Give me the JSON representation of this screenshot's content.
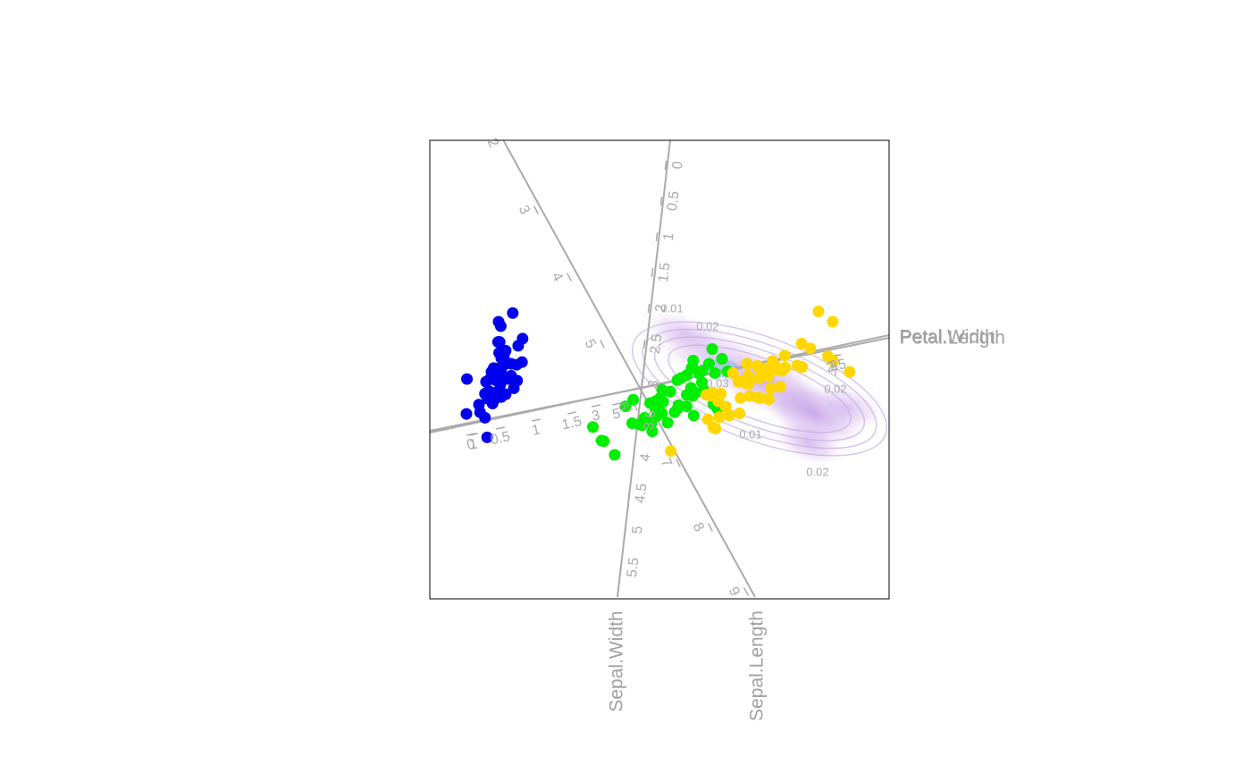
{
  "chart_data": {
    "type": "scatter",
    "description_kind": "biplot",
    "colors": {
      "axes": "#aaaaaa",
      "frame": "#000000",
      "setosa": "#0000ee",
      "versicolor": "#00ee00",
      "virginica": "#ffd700",
      "density_low": "#ead6f0",
      "density_high": "#b07ee0",
      "density_peak": "#4fa8d0"
    },
    "axes": [
      {
        "name": "Sepal.Width",
        "title": "Sepal.Width",
        "ticks": [
          "0",
          "0.5",
          "1",
          "1.5",
          "2",
          "2.5",
          "3",
          "3.5",
          "4",
          "4.5",
          "5",
          "5.5"
        ]
      },
      {
        "name": "Sepal.Length",
        "title": "Sepal.Length",
        "ticks": [
          "2",
          "3",
          "4",
          "5",
          "6",
          "7",
          "8",
          "9"
        ]
      },
      {
        "name": "Petal.Width",
        "title": "Petal.Width",
        "ticks": [
          "0",
          "0.5",
          "1",
          "1.5",
          "2",
          "2.5"
        ]
      },
      {
        "name": "Petal.Length",
        "title": "Petal.Length",
        "ticks": [
          "1",
          "3",
          "5",
          "7"
        ]
      }
    ],
    "contour_labels": [
      "0.01",
      "0.02",
      "0.03",
      "0.02",
      "0.01",
      "0.02"
    ],
    "series": [
      {
        "name": "",
        "group": "setosa",
        "points": [
          [
            -2.68,
            0.32
          ],
          [
            -2.71,
            -0.18
          ],
          [
            -2.89,
            -0.14
          ],
          [
            -2.75,
            -0.32
          ],
          [
            -2.73,
            0.33
          ],
          [
            -2.28,
            0.74
          ],
          [
            -2.82,
            -0.09
          ],
          [
            -2.63,
            0.16
          ],
          [
            -2.89,
            -0.58
          ],
          [
            -2.67,
            -0.11
          ],
          [
            -2.51,
            0.65
          ],
          [
            -2.61,
            0.02
          ],
          [
            -2.79,
            -0.24
          ],
          [
            -3.23,
            -0.51
          ],
          [
            -2.64,
            1.18
          ],
          [
            -2.38,
            1.34
          ],
          [
            -2.62,
            0.81
          ],
          [
            -2.65,
            0.31
          ],
          [
            -2.2,
            0.87
          ],
          [
            -2.59,
            0.51
          ],
          [
            -2.31,
            0.39
          ],
          [
            -2.54,
            0.43
          ],
          [
            -3.22,
            0.13
          ],
          [
            -2.3,
            0.1
          ],
          [
            -2.36,
            -0.04
          ],
          [
            -2.51,
            -0.15
          ],
          [
            -2.47,
            0.13
          ],
          [
            -2.56,
            0.37
          ],
          [
            -2.64,
            0.31
          ],
          [
            -2.63,
            -0.19
          ],
          [
            -2.59,
            -0.2
          ],
          [
            -2.41,
            0.41
          ],
          [
            -2.65,
            0.81
          ],
          [
            -2.6,
            1.1
          ],
          [
            -2.67,
            -0.11
          ],
          [
            -2.87,
            0.08
          ],
          [
            -2.63,
            0.61
          ],
          [
            -2.8,
            0.13
          ],
          [
            -2.98,
            -0.48
          ],
          [
            -2.59,
            0.23
          ],
          [
            -2.77,
            0.26
          ],
          [
            -2.85,
            -0.94
          ],
          [
            -3.0,
            -0.34
          ],
          [
            -2.41,
            0.19
          ],
          [
            -2.21,
            0.44
          ],
          [
            -2.72,
            -0.25
          ],
          [
            -2.54,
            0.5
          ],
          [
            -2.84,
            -0.23
          ],
          [
            -2.54,
            0.58
          ],
          [
            -2.7,
            0.11
          ]
        ]
      },
      {
        "name": "",
        "group": "versicolor",
        "points": [
          [
            1.28,
            0.68
          ],
          [
            0.93,
            0.32
          ],
          [
            1.46,
            0.5
          ],
          [
            0.18,
            -0.83
          ],
          [
            1.09,
            0.07
          ],
          [
            0.64,
            -0.42
          ],
          [
            1.1,
            0.28
          ],
          [
            -0.75,
            -1.0
          ],
          [
            1.04,
            0.23
          ],
          [
            -0.01,
            -0.72
          ],
          [
            -0.51,
            -1.26
          ],
          [
            0.51,
            -0.1
          ],
          [
            0.26,
            -0.55
          ],
          [
            0.98,
            -0.12
          ],
          [
            -0.17,
            -0.25
          ],
          [
            0.93,
            0.47
          ],
          [
            0.66,
            -0.35
          ],
          [
            0.23,
            -0.33
          ],
          [
            0.94,
            -0.54
          ],
          [
            0.04,
            -0.58
          ],
          [
            1.12,
            -0.08
          ],
          [
            0.36,
            -0.07
          ],
          [
            1.3,
            -0.33
          ],
          [
            0.92,
            -0.18
          ],
          [
            0.71,
            0.15
          ],
          [
            0.9,
            0.33
          ],
          [
            1.33,
            0.24
          ],
          [
            1.56,
            0.27
          ],
          [
            0.81,
            -0.16
          ],
          [
            -0.31,
            -0.37
          ],
          [
            -0.07,
            -0.7
          ],
          [
            -0.19,
            -0.68
          ],
          [
            0.14,
            -0.31
          ],
          [
            1.38,
            -0.42
          ],
          [
            0.59,
            -0.48
          ],
          [
            0.81,
            0.2
          ],
          [
            1.22,
            0.41
          ],
          [
            0.81,
            -0.37
          ],
          [
            0.25,
            -0.27
          ],
          [
            0.16,
            -0.68
          ],
          [
            0.46,
            -0.67
          ],
          [
            0.89,
            -0.03
          ],
          [
            0.23,
            -0.4
          ],
          [
            -0.71,
            -1.01
          ],
          [
            0.36,
            -0.5
          ],
          [
            0.33,
            -0.21
          ],
          [
            0.38,
            -0.29
          ],
          [
            0.64,
            0.11
          ],
          [
            -0.91,
            -0.75
          ],
          [
            0.3,
            -0.35
          ]
        ]
      },
      {
        "name": "",
        "group": "virginica",
        "points": [
          [
            2.53,
            -0.01
          ],
          [
            1.41,
            -0.57
          ],
          [
            2.62,
            0.34
          ],
          [
            1.97,
            -0.18
          ],
          [
            2.35,
            -0.04
          ],
          [
            3.4,
            0.55
          ],
          [
            0.52,
            -1.19
          ],
          [
            2.93,
            0.35
          ],
          [
            2.32,
            -0.24
          ],
          [
            2.92,
            0.78
          ],
          [
            1.66,
            0.24
          ],
          [
            1.8,
            -0.22
          ],
          [
            2.17,
            0.22
          ],
          [
            1.34,
            -0.78
          ],
          [
            1.59,
            -0.54
          ],
          [
            1.9,
            0.12
          ],
          [
            1.95,
            0.04
          ],
          [
            3.49,
            1.18
          ],
          [
            3.8,
            0.26
          ],
          [
            1.3,
            -0.76
          ],
          [
            2.43,
            0.38
          ],
          [
            1.2,
            -0.61
          ],
          [
            3.5,
            0.46
          ],
          [
            1.39,
            -0.2
          ],
          [
            2.28,
            0.33
          ],
          [
            2.61,
            0.56
          ],
          [
            1.26,
            -0.18
          ],
          [
            1.29,
            -0.12
          ],
          [
            2.12,
            -0.21
          ],
          [
            2.39,
            0.46
          ],
          [
            2.84,
            0.38
          ],
          [
            3.23,
            1.37
          ],
          [
            2.16,
            -0.22
          ],
          [
            1.44,
            -0.14
          ],
          [
            1.78,
            -0.5
          ],
          [
            3.08,
            0.69
          ],
          [
            2.14,
            0.14
          ],
          [
            1.9,
            0.05
          ],
          [
            1.17,
            -0.16
          ],
          [
            2.11,
            0.37
          ],
          [
            2.31,
            0.18
          ],
          [
            1.92,
            0.41
          ],
          [
            1.41,
            -0.57
          ],
          [
            2.56,
            0.28
          ],
          [
            2.42,
            0.3
          ],
          [
            1.94,
            0.19
          ],
          [
            1.53,
            -0.38
          ],
          [
            1.76,
            0.08
          ],
          [
            1.9,
            0.12
          ],
          [
            1.39,
            -0.28
          ]
        ]
      }
    ]
  }
}
